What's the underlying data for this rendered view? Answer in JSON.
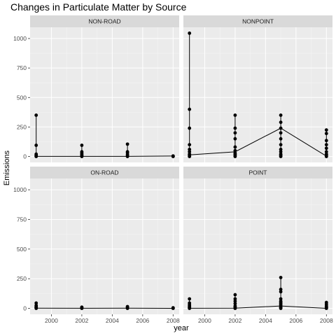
{
  "chart_data": {
    "type": "scatter",
    "title": "Changes in Particulate Matter by Source",
    "xlabel": "year",
    "ylabel": "Emissions",
    "x_ticks": [
      2000,
      2002,
      2004,
      2006,
      2008
    ],
    "y_ticks": [
      0,
      250,
      500,
      750,
      1000
    ],
    "xlim": [
      1998.6,
      2008.4
    ],
    "ylim": [
      -50,
      1095
    ],
    "grid": true,
    "layout": "facet 2x2",
    "panels": [
      {
        "name": "NON-ROAD",
        "points": [
          {
            "year": 1999,
            "values": [
              0,
              5,
              10,
              20,
              95,
              350
            ]
          },
          {
            "year": 2002,
            "values": [
              0,
              5,
              10,
              20,
              30,
              40,
              95
            ]
          },
          {
            "year": 2005,
            "values": [
              0,
              5,
              15,
              30,
              40,
              105
            ]
          },
          {
            "year": 2008,
            "values": [
              0,
              2,
              5
            ]
          }
        ],
        "line": [
          [
            1999,
            1
          ],
          [
            2002,
            1
          ],
          [
            2005,
            1
          ],
          [
            2008,
            4
          ]
        ]
      },
      {
        "name": "NONPOINT",
        "points": [
          {
            "year": 1999,
            "values": [
              0,
              10,
              20,
              40,
              60,
              100,
              240,
              400,
              1045
            ]
          },
          {
            "year": 2002,
            "values": [
              0,
              10,
              20,
              30,
              50,
              80,
              150,
              200,
              240,
              350
            ]
          },
          {
            "year": 2005,
            "values": [
              0,
              10,
              20,
              40,
              60,
              100,
              150,
              200,
              240,
              290,
              350
            ]
          },
          {
            "year": 2008,
            "values": [
              0,
              10,
              20,
              40,
              70,
              100,
              135,
              195,
              225
            ]
          }
        ],
        "line": [
          [
            1999,
            14
          ],
          [
            2002,
            40
          ],
          [
            2005,
            240
          ],
          [
            2008,
            3
          ]
        ]
      },
      {
        "name": "ON-ROAD",
        "points": [
          {
            "year": 1999,
            "values": [
              0,
              5,
              10,
              15,
              25,
              45
            ]
          },
          {
            "year": 2002,
            "values": [
              0,
              2,
              5,
              10
            ]
          },
          {
            "year": 2005,
            "values": [
              0,
              3,
              8,
              15
            ]
          },
          {
            "year": 2008,
            "values": [
              0,
              2,
              5
            ]
          }
        ],
        "line": [
          [
            1999,
            2
          ],
          [
            2002,
            1
          ],
          [
            2005,
            2
          ],
          [
            2008,
            0
          ]
        ]
      },
      {
        "name": "POINT",
        "points": [
          {
            "year": 1999,
            "values": [
              0,
              5,
              10,
              20,
              30,
              45,
              80
            ]
          },
          {
            "year": 2002,
            "values": [
              0,
              5,
              10,
              20,
              40,
              60,
              80,
              115
            ]
          },
          {
            "year": 2005,
            "values": [
              0,
              5,
              10,
              20,
              30,
              40,
              50,
              60,
              80,
              140,
              160,
              260
            ]
          },
          {
            "year": 2008,
            "values": [
              0,
              5,
              10,
              20,
              35,
              50
            ]
          }
        ],
        "line": [
          [
            1999,
            1
          ],
          [
            2002,
            2
          ],
          [
            2005,
            20
          ],
          [
            2008,
            0
          ]
        ]
      }
    ]
  }
}
